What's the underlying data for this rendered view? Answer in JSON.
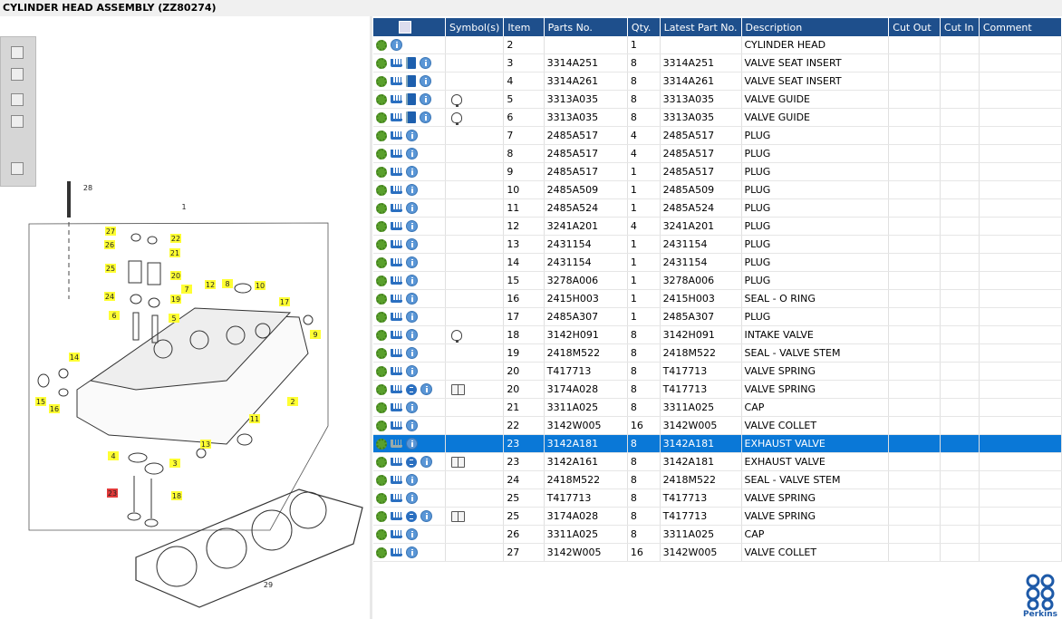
{
  "header": {
    "title": "CYLINDER HEAD ASSEMBLY (ZZ80274)"
  },
  "logo": "Perkins",
  "table": {
    "columns": [
      "Symbol(s)",
      "Item",
      "Parts No.",
      "Qty.",
      "Latest Part No.",
      "Description",
      "Cut Out",
      "Cut In",
      "Comment"
    ],
    "selected_row": 22,
    "rows": [
      {
        "icons": [
          "gear",
          "info"
        ],
        "item": "2",
        "qty": "1",
        "description": "CYLINDER HEAD"
      },
      {
        "icons": [
          "gear",
          "cart",
          "book",
          "info"
        ],
        "item": "3",
        "part_no": "3314A251",
        "qty": "8",
        "latest_part_no": "3314A251",
        "description": "VALVE SEAT INSERT"
      },
      {
        "icons": [
          "gear",
          "cart",
          "book",
          "info"
        ],
        "item": "4",
        "part_no": "3314A261",
        "qty": "8",
        "latest_part_no": "3314A261",
        "description": "VALVE SEAT INSERT"
      },
      {
        "icons": [
          "gear",
          "cart",
          "book",
          "info"
        ],
        "symbol": "bulb",
        "item": "5",
        "part_no": "3313A035",
        "qty": "8",
        "latest_part_no": "3313A035",
        "description": "VALVE GUIDE"
      },
      {
        "icons": [
          "gear",
          "cart",
          "book",
          "info"
        ],
        "symbol": "bulb",
        "item": "6",
        "part_no": "3313A035",
        "qty": "8",
        "latest_part_no": "3313A035",
        "description": "VALVE GUIDE"
      },
      {
        "icons": [
          "gear",
          "cart",
          "info"
        ],
        "item": "7",
        "part_no": "2485A517",
        "qty": "4",
        "latest_part_no": "2485A517",
        "description": "PLUG"
      },
      {
        "icons": [
          "gear",
          "cart",
          "info"
        ],
        "item": "8",
        "part_no": "2485A517",
        "qty": "4",
        "latest_part_no": "2485A517",
        "description": "PLUG"
      },
      {
        "icons": [
          "gear",
          "cart",
          "info"
        ],
        "item": "9",
        "part_no": "2485A517",
        "qty": "1",
        "latest_part_no": "2485A517",
        "description": "PLUG"
      },
      {
        "icons": [
          "gear",
          "cart",
          "info"
        ],
        "item": "10",
        "part_no": "2485A509",
        "qty": "1",
        "latest_part_no": "2485A509",
        "description": "PLUG"
      },
      {
        "icons": [
          "gear",
          "cart",
          "info"
        ],
        "item": "11",
        "part_no": "2485A524",
        "qty": "1",
        "latest_part_no": "2485A524",
        "description": "PLUG"
      },
      {
        "icons": [
          "gear",
          "cart",
          "info"
        ],
        "item": "12",
        "part_no": "3241A201",
        "qty": "4",
        "latest_part_no": "3241A201",
        "description": "PLUG"
      },
      {
        "icons": [
          "gear",
          "cart",
          "info"
        ],
        "item": "13",
        "part_no": "2431154",
        "qty": "1",
        "latest_part_no": "2431154",
        "description": "PLUG"
      },
      {
        "icons": [
          "gear",
          "cart",
          "info"
        ],
        "item": "14",
        "part_no": "2431154",
        "qty": "1",
        "latest_part_no": "2431154",
        "description": "PLUG"
      },
      {
        "icons": [
          "gear",
          "cart",
          "info"
        ],
        "item": "15",
        "part_no": "3278A006",
        "qty": "1",
        "latest_part_no": "3278A006",
        "description": "PLUG"
      },
      {
        "icons": [
          "gear",
          "cart",
          "info"
        ],
        "item": "16",
        "part_no": "2415H003",
        "qty": "1",
        "latest_part_no": "2415H003",
        "description": "SEAL - O RING"
      },
      {
        "icons": [
          "gear",
          "cart",
          "info"
        ],
        "item": "17",
        "part_no": "2485A307",
        "qty": "1",
        "latest_part_no": "2485A307",
        "description": "PLUG"
      },
      {
        "icons": [
          "gear",
          "cart",
          "info"
        ],
        "symbol": "bulb",
        "item": "18",
        "part_no": "3142H091",
        "qty": "8",
        "latest_part_no": "3142H091",
        "description": "INTAKE VALVE"
      },
      {
        "icons": [
          "gear",
          "cart",
          "info"
        ],
        "item": "19",
        "part_no": "2418M522",
        "qty": "8",
        "latest_part_no": "2418M522",
        "description": "SEAL - VALVE STEM"
      },
      {
        "icons": [
          "gear",
          "cart",
          "info"
        ],
        "item": "20",
        "part_no": "T417713",
        "qty": "8",
        "latest_part_no": "T417713",
        "description": "VALVE SPRING"
      },
      {
        "icons": [
          "gear",
          "cart",
          "s",
          "info"
        ],
        "symbol": "manual",
        "item": "20",
        "part_no": "3174A028",
        "qty": "8",
        "latest_part_no": "T417713",
        "description": "VALVE SPRING"
      },
      {
        "icons": [
          "gear",
          "cart",
          "info"
        ],
        "item": "21",
        "part_no": "3311A025",
        "qty": "8",
        "latest_part_no": "3311A025",
        "description": "CAP"
      },
      {
        "icons": [
          "gear",
          "cart",
          "info"
        ],
        "item": "22",
        "part_no": "3142W005",
        "qty": "16",
        "latest_part_no": "3142W005",
        "description": "VALVE COLLET"
      },
      {
        "icons": [
          "gear",
          "cart-gray",
          "info"
        ],
        "item": "23",
        "part_no": "3142A181",
        "qty": "8",
        "latest_part_no": "3142A181",
        "description": "EXHAUST VALVE"
      },
      {
        "icons": [
          "gear",
          "cart",
          "s",
          "info"
        ],
        "symbol": "manual",
        "item": "23",
        "part_no": "3142A161",
        "qty": "8",
        "latest_part_no": "3142A181",
        "description": "EXHAUST VALVE"
      },
      {
        "icons": [
          "gear",
          "cart",
          "info"
        ],
        "item": "24",
        "part_no": "2418M522",
        "qty": "8",
        "latest_part_no": "2418M522",
        "description": "SEAL - VALVE STEM"
      },
      {
        "icons": [
          "gear",
          "cart",
          "info"
        ],
        "item": "25",
        "part_no": "T417713",
        "qty": "8",
        "latest_part_no": "T417713",
        "description": "VALVE SPRING"
      },
      {
        "icons": [
          "gear",
          "cart",
          "s",
          "info"
        ],
        "symbol": "manual",
        "item": "25",
        "part_no": "3174A028",
        "qty": "8",
        "latest_part_no": "T417713",
        "description": "VALVE SPRING"
      },
      {
        "icons": [
          "gear",
          "cart",
          "info"
        ],
        "item": "26",
        "part_no": "3311A025",
        "qty": "8",
        "latest_part_no": "3311A025",
        "description": "CAP"
      },
      {
        "icons": [
          "gear",
          "cart",
          "info"
        ],
        "item": "27",
        "part_no": "3142W005",
        "qty": "16",
        "latest_part_no": "3142W005",
        "description": "VALVE COLLET"
      }
    ]
  },
  "diagram": {
    "callouts": [
      {
        "label": "28",
        "style": "plain"
      },
      {
        "label": "1",
        "style": "plain"
      },
      {
        "label": "27",
        "style": "yellow"
      },
      {
        "label": "22",
        "style": "yellow"
      },
      {
        "label": "26",
        "style": "yellow"
      },
      {
        "label": "21",
        "style": "yellow"
      },
      {
        "label": "25",
        "style": "yellow"
      },
      {
        "label": "20",
        "style": "yellow"
      },
      {
        "label": "24",
        "style": "yellow"
      },
      {
        "label": "19",
        "style": "yellow"
      },
      {
        "label": "12",
        "style": "yellow"
      },
      {
        "label": "8",
        "style": "yellow"
      },
      {
        "label": "10",
        "style": "yellow"
      },
      {
        "label": "7",
        "style": "yellow"
      },
      {
        "label": "17",
        "style": "yellow"
      },
      {
        "label": "6",
        "style": "yellow"
      },
      {
        "label": "5",
        "style": "yellow"
      },
      {
        "label": "9",
        "style": "yellow"
      },
      {
        "label": "14",
        "style": "yellow"
      },
      {
        "label": "2",
        "style": "yellow"
      },
      {
        "label": "15",
        "style": "yellow"
      },
      {
        "label": "16",
        "style": "yellow"
      },
      {
        "label": "11",
        "style": "yellow"
      },
      {
        "label": "4",
        "style": "yellow"
      },
      {
        "label": "3",
        "style": "yellow"
      },
      {
        "label": "13",
        "style": "yellow"
      },
      {
        "label": "23",
        "style": "red"
      },
      {
        "label": "18",
        "style": "yellow"
      },
      {
        "label": "29",
        "style": "plain"
      }
    ]
  }
}
